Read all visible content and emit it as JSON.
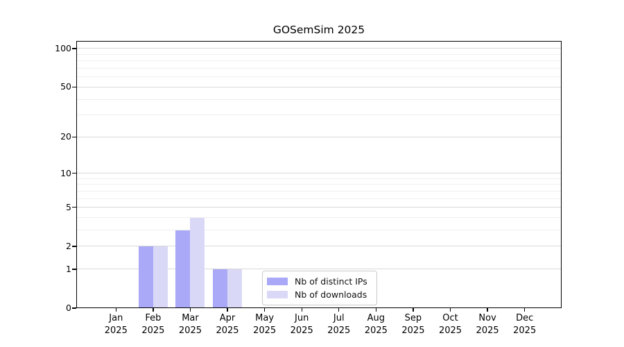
{
  "chart_data": {
    "type": "bar",
    "title": "GOSemSim 2025",
    "categories": [
      "Jan",
      "Feb",
      "Mar",
      "Apr",
      "May",
      "Jun",
      "Jul",
      "Aug",
      "Sep",
      "Oct",
      "Nov",
      "Dec"
    ],
    "category_year": "2025",
    "series": [
      {
        "name": "Nb of distinct IPs",
        "color": "#a9a9f7",
        "values": [
          0,
          2,
          3,
          1,
          0,
          0,
          0,
          0,
          0,
          0,
          0,
          0
        ]
      },
      {
        "name": "Nb of downloads",
        "color": "#d9d9f7",
        "values": [
          0,
          2,
          4,
          1,
          0,
          0,
          0,
          0,
          0,
          0,
          0,
          0
        ]
      }
    ],
    "xlabel": "",
    "ylabel": "",
    "y_scale": "log10(1+x)",
    "y_tick_values": [
      0,
      1,
      2,
      5,
      10,
      20,
      50,
      100
    ],
    "y_tick_labels": [
      "0",
      "1",
      "2",
      "5",
      "10",
      "20",
      "50",
      "100"
    ],
    "y_minor_gridlines": [
      3,
      4,
      6,
      7,
      8,
      9,
      30,
      40,
      60,
      70,
      80,
      90
    ],
    "ylim": [
      0,
      110
    ],
    "grid": "horizontal",
    "legend_position": "inside bottom center"
  },
  "colors": {
    "distinct_ips_bar": "#a9a9f7",
    "downloads_bar": "#d9d9f7",
    "major_gridline": "#d8d8d8",
    "minor_gridline": "#efefef",
    "axis_spine": "#000000",
    "legend_border": "#c9c9c9",
    "background": "#ffffff"
  }
}
